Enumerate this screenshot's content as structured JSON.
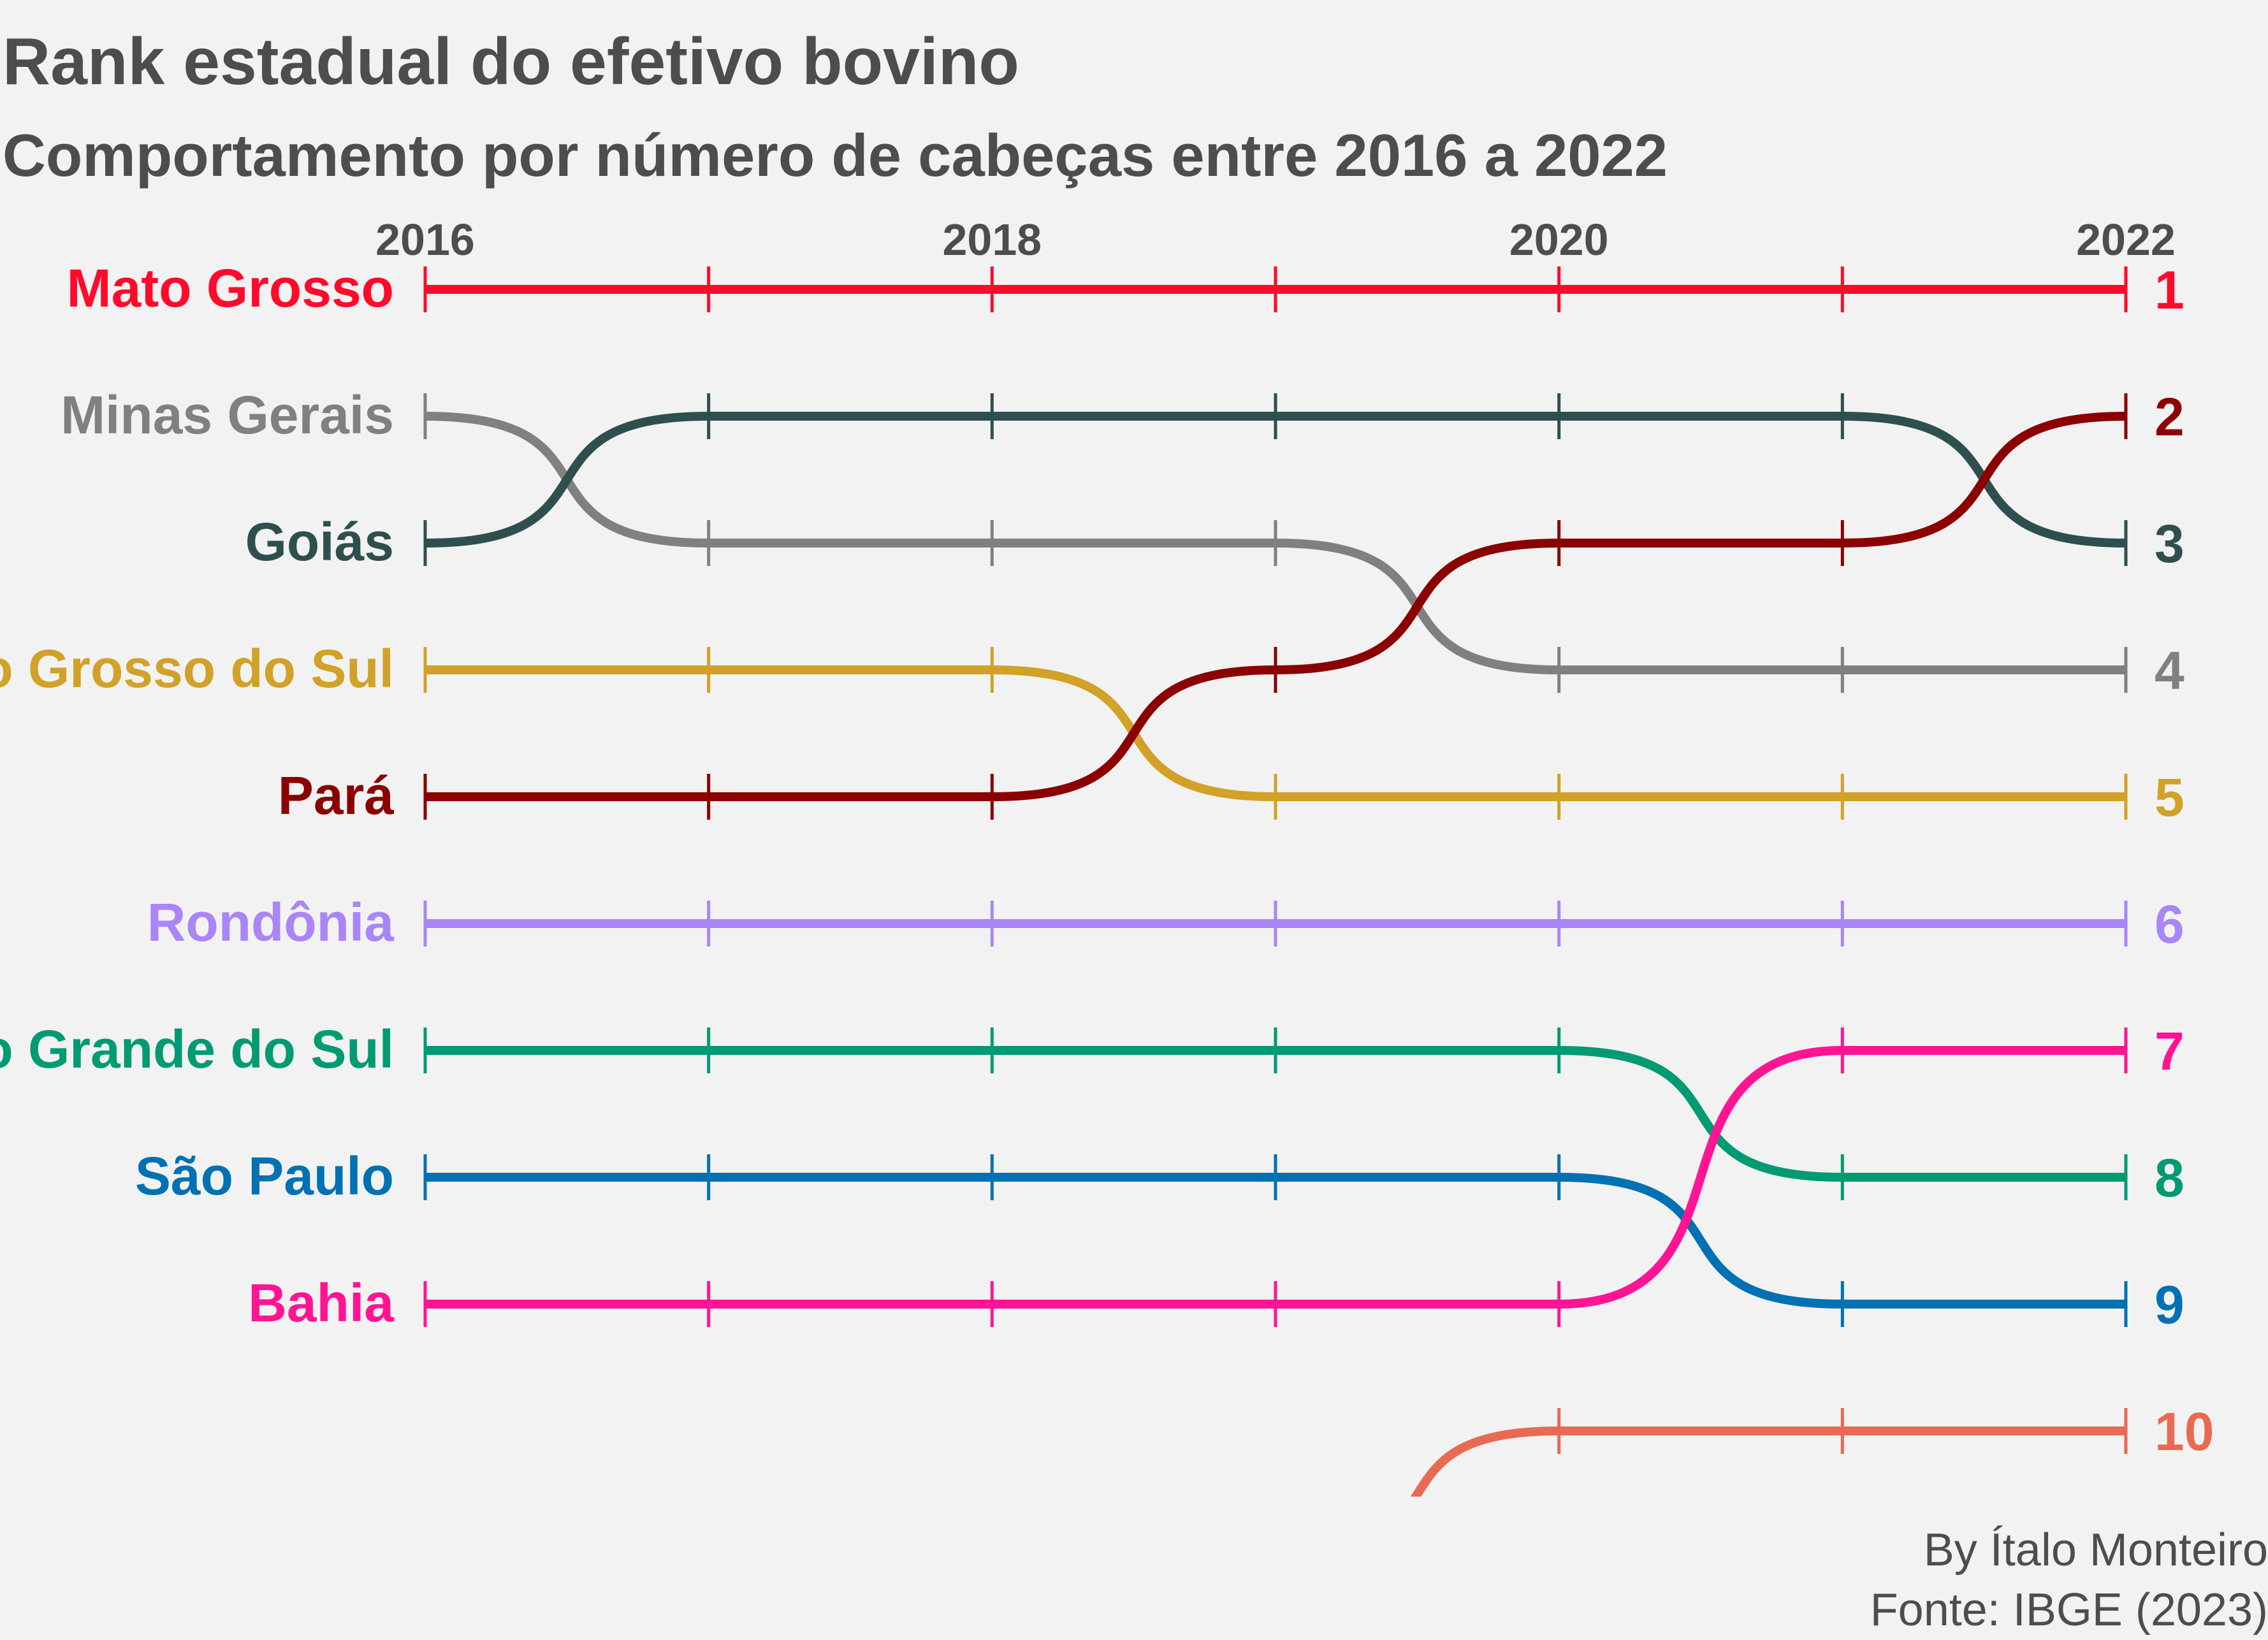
{
  "title": "Rank estadual do efetivo bovino",
  "subtitle": "Comportamento por número de cabeças entre 2016 a 2022",
  "caption": {
    "author": "By Ítalo Monteiro",
    "source": "Fonte: IBGE (2023)"
  },
  "chart_data": {
    "type": "line",
    "subtype": "bump",
    "x": [
      2016,
      2017,
      2018,
      2019,
      2020,
      2021,
      2022
    ],
    "x_tick_labels": [
      "2016",
      "2018",
      "2020",
      "2022"
    ],
    "xlim": [
      2016,
      2022
    ],
    "y_axis": "rank (1 = top)",
    "ylim": [
      1,
      10
    ],
    "grid": false,
    "series": [
      {
        "name": "Mato Grosso",
        "color": "#ff0a2b",
        "ranks": [
          1,
          1,
          1,
          1,
          1,
          1,
          1
        ]
      },
      {
        "name": "Minas Gerais",
        "color": "#808080",
        "ranks": [
          2,
          3,
          3,
          3,
          4,
          4,
          4
        ]
      },
      {
        "name": "Goiás",
        "color": "#2f4f4f",
        "ranks": [
          3,
          2,
          2,
          2,
          2,
          2,
          3
        ]
      },
      {
        "name": "Mato Grosso do Sul",
        "color": "#d1a128",
        "ranks": [
          4,
          4,
          4,
          5,
          5,
          5,
          5
        ]
      },
      {
        "name": "Pará",
        "color": "#8b0000",
        "ranks": [
          5,
          5,
          5,
          4,
          3,
          3,
          2
        ]
      },
      {
        "name": "Rondônia",
        "color": "#a985f7",
        "ranks": [
          6,
          6,
          6,
          6,
          6,
          6,
          6
        ]
      },
      {
        "name": "Rio Grande do Sul",
        "color": "#009a73",
        "ranks": [
          7,
          7,
          7,
          7,
          7,
          8,
          8
        ]
      },
      {
        "name": "São Paulo",
        "color": "#0071b2",
        "ranks": [
          8,
          8,
          8,
          8,
          8,
          9,
          9
        ]
      },
      {
        "name": "Bahia",
        "color": "#ff1493",
        "ranks": [
          9,
          9,
          9,
          9,
          9,
          7,
          7
        ]
      },
      {
        "name": "",
        "color": "#e86a53",
        "ranks": [
          null,
          null,
          null,
          11,
          10,
          10,
          10
        ]
      }
    ]
  }
}
